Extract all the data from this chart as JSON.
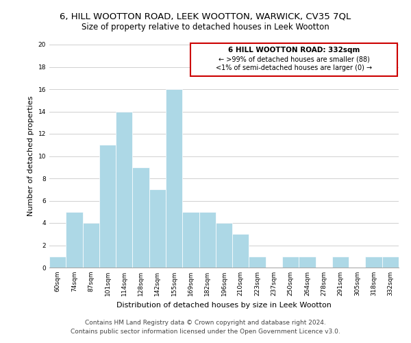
{
  "title": "6, HILL WOOTTON ROAD, LEEK WOOTTON, WARWICK, CV35 7QL",
  "subtitle": "Size of property relative to detached houses in Leek Wootton",
  "xlabel": "Distribution of detached houses by size in Leek Wootton",
  "ylabel": "Number of detached properties",
  "bin_labels": [
    "60sqm",
    "74sqm",
    "87sqm",
    "101sqm",
    "114sqm",
    "128sqm",
    "142sqm",
    "155sqm",
    "169sqm",
    "182sqm",
    "196sqm",
    "210sqm",
    "223sqm",
    "237sqm",
    "250sqm",
    "264sqm",
    "278sqm",
    "291sqm",
    "305sqm",
    "318sqm",
    "332sqm"
  ],
  "values": [
    1,
    5,
    4,
    11,
    14,
    9,
    7,
    16,
    5,
    5,
    4,
    3,
    1,
    0,
    1,
    1,
    0,
    1,
    0,
    1,
    1
  ],
  "bar_color": "#add8e6",
  "grid_color": "#d0d0d0",
  "annotation_box_edge": "#cc0000",
  "annotation_title": "6 HILL WOOTTON ROAD: 332sqm",
  "annotation_line1": "← >99% of detached houses are smaller (88)",
  "annotation_line2": "<1% of semi-detached houses are larger (0) →",
  "ylim": [
    0,
    20
  ],
  "yticks": [
    0,
    2,
    4,
    6,
    8,
    10,
    12,
    14,
    16,
    18,
    20
  ],
  "footer1": "Contains HM Land Registry data © Crown copyright and database right 2024.",
  "footer2": "Contains public sector information licensed under the Open Government Licence v3.0.",
  "title_fontsize": 9.5,
  "subtitle_fontsize": 8.5,
  "axis_label_fontsize": 8,
  "tick_fontsize": 6.5,
  "annotation_title_fontsize": 7.5,
  "annotation_text_fontsize": 7,
  "footer_fontsize": 6.5
}
